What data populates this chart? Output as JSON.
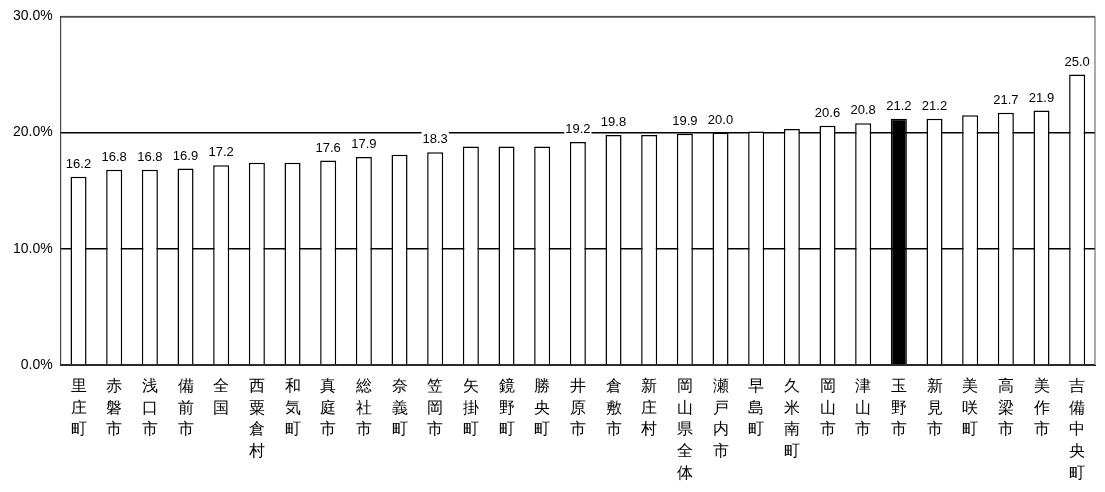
{
  "chart_data": {
    "type": "bar",
    "categories": [
      "里庄町",
      "赤磐市",
      "浅口市",
      "備前市",
      "全国",
      "西粟倉村",
      "和気町",
      "真庭市",
      "総社市",
      "奈義町",
      "笠岡市",
      "矢掛町",
      "鏡野町",
      "勝央町",
      "井原市",
      "倉敷市",
      "新庄村",
      "岡山県全体",
      "瀬戸内市",
      "早島町",
      "久米南町",
      "岡山市",
      "津山市",
      "玉野市",
      "新見市",
      "美咲町",
      "高梁市",
      "美作市",
      "吉備中央町"
    ],
    "values": [
      16.2,
      16.8,
      16.8,
      16.9,
      17.2,
      17.4,
      17.4,
      17.6,
      17.9,
      18.1,
      18.3,
      18.8,
      18.8,
      18.8,
      19.2,
      19.8,
      19.8,
      19.9,
      20.0,
      20.1,
      20.3,
      20.6,
      20.8,
      21.2,
      21.2,
      21.5,
      21.7,
      21.9,
      25.0
    ],
    "colors": [
      "#ffffff",
      "#ffffff",
      "#ffffff",
      "#ffffff",
      "#ffffff",
      "#ffffff",
      "#ffffff",
      "#ffffff",
      "#ffffff",
      "#ffffff",
      "#ffffff",
      "#ffffff",
      "#ffffff",
      "#ffffff",
      "#ffffff",
      "#ffffff",
      "#ffffff",
      "#ffffff",
      "#ffffff",
      "#ffffff",
      "#ffffff",
      "#ffffff",
      "#ffffff",
      "#000000",
      "#ffffff",
      "#ffffff",
      "#ffffff",
      "#ffffff",
      "#ffffff"
    ],
    "value_labels": [
      "16.2",
      "16.8",
      "16.8",
      "16.9",
      "17.2",
      null,
      null,
      "17.6",
      "17.9",
      null,
      "18.3",
      null,
      null,
      null,
      "19.2",
      "19.8",
      null,
      "19.9",
      "20.0",
      null,
      null,
      "20.6",
      "20.8",
      "21.2",
      "21.2",
      null,
      "21.7",
      "21.9",
      "25.0"
    ],
    "ylim": [
      0,
      30
    ],
    "yticks": [
      {
        "value": 0,
        "label": "0.0%"
      },
      {
        "value": 10,
        "label": "10.0%"
      },
      {
        "value": 20,
        "label": "20.0%"
      },
      {
        "value": 30,
        "label": "30.0%"
      }
    ],
    "grid": "y"
  }
}
